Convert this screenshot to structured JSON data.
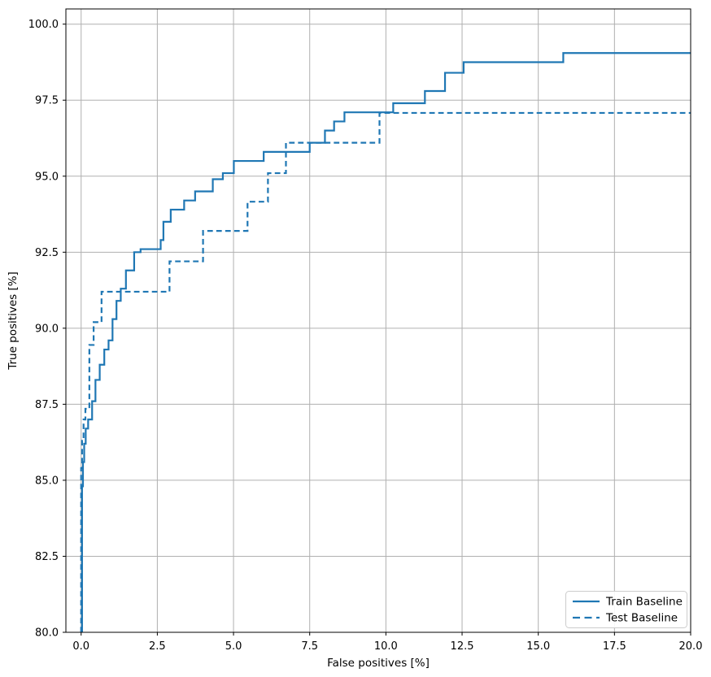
{
  "chart_data": {
    "type": "line",
    "subtype": "step-post",
    "title": "",
    "xlabel": "False positives [%]",
    "ylabel": "True positives [%]",
    "xlim": [
      -0.5,
      20
    ],
    "ylim": [
      80,
      100.5
    ],
    "grid": true,
    "grid_color": "#b0b0b0",
    "background": "#ffffff",
    "accent_color": "#1f77b4",
    "xticks": [
      {
        "value": 0,
        "label": "0.0"
      },
      {
        "value": 2.5,
        "label": "2.5"
      },
      {
        "value": 5,
        "label": "5.0"
      },
      {
        "value": 7.5,
        "label": "7.5"
      },
      {
        "value": 10,
        "label": "10.0"
      },
      {
        "value": 12.5,
        "label": "12.5"
      },
      {
        "value": 15,
        "label": "15.0"
      },
      {
        "value": 17.5,
        "label": "17.5"
      },
      {
        "value": 20,
        "label": "20.0"
      }
    ],
    "yticks": [
      {
        "value": 80,
        "label": "80.0"
      },
      {
        "value": 82.5,
        "label": "82.5"
      },
      {
        "value": 85,
        "label": "85.0"
      },
      {
        "value": 87.5,
        "label": "87.5"
      },
      {
        "value": 90,
        "label": "90.0"
      },
      {
        "value": 92.5,
        "label": "92.5"
      },
      {
        "value": 95,
        "label": "95.0"
      },
      {
        "value": 97.5,
        "label": "97.5"
      },
      {
        "value": 100,
        "label": "100.0"
      }
    ],
    "legend_position": "lower right",
    "series": [
      {
        "name": "Train Baseline",
        "color": "#1f77b4",
        "style": "solid",
        "line_width": 2.2,
        "points": [
          [
            0.03,
            80.0
          ],
          [
            0.03,
            84.8
          ],
          [
            0.06,
            84.8
          ],
          [
            0.06,
            85.6
          ],
          [
            0.1,
            85.6
          ],
          [
            0.1,
            86.2
          ],
          [
            0.15,
            86.2
          ],
          [
            0.15,
            86.7
          ],
          [
            0.23,
            86.7
          ],
          [
            0.23,
            87.0
          ],
          [
            0.36,
            87.0
          ],
          [
            0.36,
            87.6
          ],
          [
            0.47,
            87.6
          ],
          [
            0.47,
            88.3
          ],
          [
            0.61,
            88.3
          ],
          [
            0.61,
            88.8
          ],
          [
            0.76,
            88.8
          ],
          [
            0.76,
            89.3
          ],
          [
            0.9,
            89.3
          ],
          [
            0.9,
            89.6
          ],
          [
            1.03,
            89.6
          ],
          [
            1.03,
            90.3
          ],
          [
            1.16,
            90.3
          ],
          [
            1.16,
            90.9
          ],
          [
            1.3,
            90.9
          ],
          [
            1.3,
            91.3
          ],
          [
            1.47,
            91.3
          ],
          [
            1.47,
            91.9
          ],
          [
            1.74,
            91.9
          ],
          [
            1.74,
            92.5
          ],
          [
            1.95,
            92.5
          ],
          [
            1.95,
            92.6
          ],
          [
            2.61,
            92.6
          ],
          [
            2.61,
            92.9
          ],
          [
            2.7,
            92.9
          ],
          [
            2.7,
            93.5
          ],
          [
            2.94,
            93.5
          ],
          [
            2.94,
            93.9
          ],
          [
            3.38,
            93.9
          ],
          [
            3.38,
            94.2
          ],
          [
            3.74,
            94.2
          ],
          [
            3.74,
            94.5
          ],
          [
            4.32,
            94.5
          ],
          [
            4.32,
            94.9
          ],
          [
            4.65,
            94.9
          ],
          [
            4.65,
            95.1
          ],
          [
            5.01,
            95.1
          ],
          [
            5.01,
            95.5
          ],
          [
            5.99,
            95.5
          ],
          [
            5.99,
            95.8
          ],
          [
            7.5,
            95.8
          ],
          [
            7.5,
            96.1
          ],
          [
            8.0,
            96.1
          ],
          [
            8.0,
            96.5
          ],
          [
            8.3,
            96.5
          ],
          [
            8.3,
            96.8
          ],
          [
            8.64,
            96.8
          ],
          [
            8.64,
            97.1
          ],
          [
            10.24,
            97.1
          ],
          [
            10.24,
            97.4
          ],
          [
            11.28,
            97.4
          ],
          [
            11.28,
            97.8
          ],
          [
            11.94,
            97.8
          ],
          [
            11.94,
            98.4
          ],
          [
            12.55,
            98.4
          ],
          [
            12.55,
            98.75
          ],
          [
            15.82,
            98.75
          ],
          [
            15.82,
            99.05
          ],
          [
            20,
            99.05
          ]
        ]
      },
      {
        "name": "Test Baseline",
        "color": "#1f77b4",
        "style": "dashed",
        "line_width": 2.2,
        "points": [
          [
            0.0,
            80.0
          ],
          [
            0.0,
            85.4
          ],
          [
            0.03,
            85.4
          ],
          [
            0.03,
            86.3
          ],
          [
            0.08,
            86.3
          ],
          [
            0.08,
            87.0
          ],
          [
            0.14,
            87.0
          ],
          [
            0.14,
            87.35
          ],
          [
            0.27,
            87.35
          ],
          [
            0.27,
            89.45
          ],
          [
            0.41,
            89.45
          ],
          [
            0.41,
            90.2
          ],
          [
            0.67,
            90.2
          ],
          [
            0.67,
            91.2
          ],
          [
            2.9,
            91.2
          ],
          [
            2.9,
            92.2
          ],
          [
            4.0,
            92.2
          ],
          [
            4.0,
            93.2
          ],
          [
            5.46,
            93.2
          ],
          [
            5.46,
            94.16
          ],
          [
            6.13,
            94.16
          ],
          [
            6.13,
            95.1
          ],
          [
            6.72,
            95.1
          ],
          [
            6.72,
            96.1
          ],
          [
            9.79,
            96.1
          ],
          [
            9.79,
            97.08
          ],
          [
            20,
            97.08
          ]
        ]
      }
    ]
  },
  "legend": {
    "items": [
      {
        "label": "Train Baseline",
        "style": "solid"
      },
      {
        "label": "Test Baseline",
        "style": "dashed"
      }
    ]
  }
}
